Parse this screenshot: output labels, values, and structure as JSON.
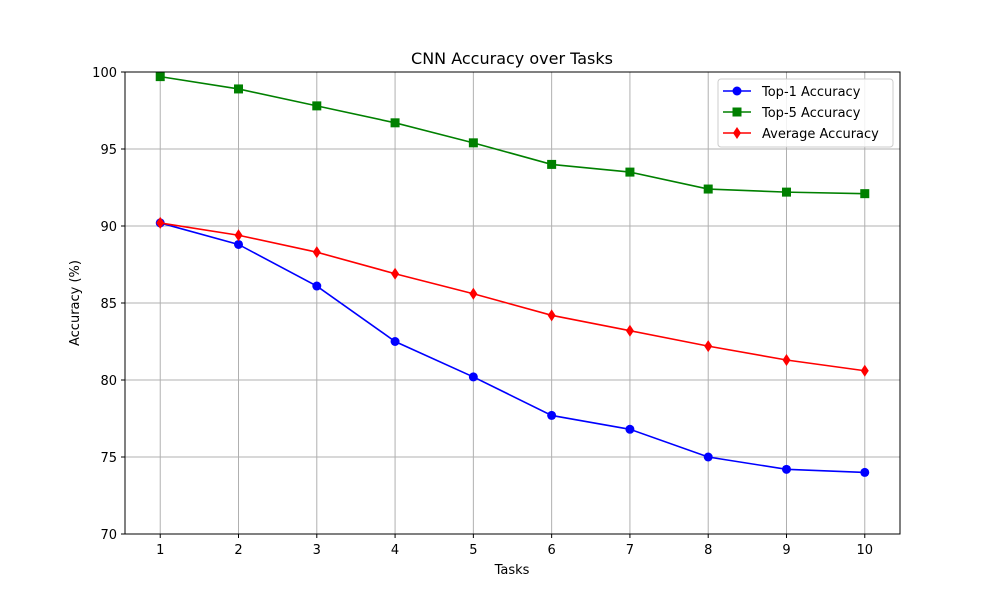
{
  "chart_data": {
    "type": "line",
    "title": "CNN Accuracy over Tasks",
    "xlabel": "Tasks",
    "ylabel": "Accuracy (%)",
    "x": [
      1,
      2,
      3,
      4,
      5,
      6,
      7,
      8,
      9,
      10
    ],
    "xticks": [
      "1",
      "2",
      "3",
      "4",
      "5",
      "6",
      "7",
      "8",
      "9",
      "10"
    ],
    "xlim": [
      0.55,
      10.45
    ],
    "ylim": [
      70,
      100
    ],
    "yticks": [
      "70",
      "75",
      "80",
      "85",
      "90",
      "95",
      "100"
    ],
    "grid": true,
    "legend_position": "top-right",
    "series": [
      {
        "name": "Top-1 Accuracy",
        "color": "#0000ff",
        "marker": "circle",
        "values": [
          90.2,
          88.8,
          86.1,
          82.5,
          80.2,
          77.7,
          76.8,
          75.0,
          74.2,
          74.0
        ]
      },
      {
        "name": "Top-5 Accuracy",
        "color": "#008000",
        "marker": "square",
        "values": [
          99.7,
          98.9,
          97.8,
          96.7,
          95.4,
          94.0,
          93.5,
          92.4,
          92.2,
          92.1
        ]
      },
      {
        "name": "Average Accuracy",
        "color": "#ff0000",
        "marker": "diamond",
        "values": [
          90.2,
          89.4,
          88.3,
          86.9,
          85.6,
          84.2,
          83.2,
          82.2,
          81.3,
          80.6
        ]
      }
    ]
  }
}
